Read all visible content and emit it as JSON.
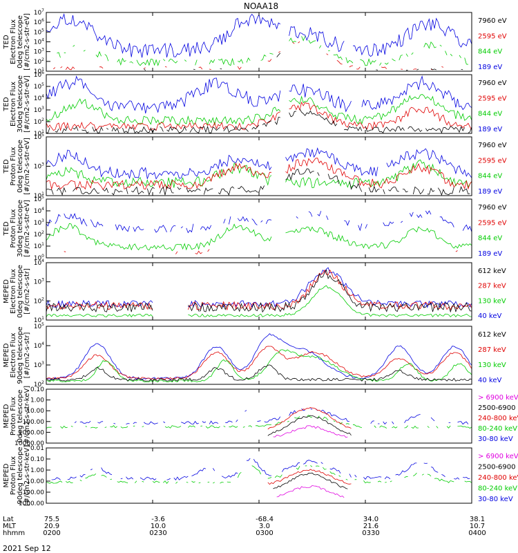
{
  "title": "NOAA18",
  "date": "2021 Sep 12",
  "colors": {
    "black": "#000000",
    "red": "#e00000",
    "green": "#00cc00",
    "blue": "#0000e0",
    "magenta": "#e000e0"
  },
  "xaxis": {
    "row_labels": [
      "Lat",
      "MLT",
      "hhmm"
    ],
    "ticks": [
      {
        "lat": "75.5",
        "mlt": "20.9",
        "hhmm": "0200"
      },
      {
        "lat": "-3.6",
        "mlt": "10.0",
        "hhmm": "0230"
      },
      {
        "lat": "-68.4",
        "mlt": "3.0",
        "hhmm": "0300"
      },
      {
        "lat": "34.0",
        "mlt": "21.6",
        "hhmm": "0330"
      },
      {
        "lat": "38.1",
        "mlt": "10.7",
        "hhmm": "0400"
      }
    ]
  },
  "chart_data": [
    {
      "type": "line",
      "ylabel": [
        "TED",
        "Electron Flux",
        "0deg telescope",
        "[#/cm2-s-str-eV]"
      ],
      "ytick_labels": [
        "10^1",
        "10^2",
        "10^3",
        "10^4",
        "10^5",
        "10^6",
        "10^7"
      ],
      "legend": [
        {
          "label": "7960 eV",
          "color": "black"
        },
        {
          "label": "2595 eV",
          "color": "red"
        },
        {
          "label": "844 eV",
          "color": "green"
        },
        {
          "label": "189 eV",
          "color": "blue"
        }
      ]
    },
    {
      "type": "line",
      "ylabel": [
        "TED",
        "Electron Flux",
        "30deg telescope",
        "[#/cm2-s-str-eV]"
      ],
      "ytick_labels": [
        "10^1",
        "10^2",
        "10^3",
        "10^4",
        "10^5",
        "10^6"
      ],
      "legend": [
        {
          "label": "7960 eV",
          "color": "black"
        },
        {
          "label": "2595 eV",
          "color": "red"
        },
        {
          "label": "844 eV",
          "color": "green"
        },
        {
          "label": "189 eV",
          "color": "blue"
        }
      ]
    },
    {
      "type": "line",
      "ylabel": [
        "TED",
        "Proton Flux",
        "0deg telescope",
        "[#/cm2-s-str-eV]"
      ],
      "ytick_labels": [
        "10^1",
        "10^3",
        "10^5"
      ],
      "legend": [
        {
          "label": "7960 eV",
          "color": "black"
        },
        {
          "label": "2595 eV",
          "color": "red"
        },
        {
          "label": "844 eV",
          "color": "green"
        },
        {
          "label": "189 eV",
          "color": "blue"
        }
      ]
    },
    {
      "type": "line",
      "ylabel": [
        "TED",
        "Proton Flux",
        "30deg telescope",
        "[#/cm2-s-str-eV]"
      ],
      "ytick_labels": [
        "10^0",
        "10^1",
        "10^2",
        "10^3",
        "10^4",
        "10^5"
      ],
      "legend": [
        {
          "label": "7960 eV",
          "color": "black"
        },
        {
          "label": "2595 eV",
          "color": "red"
        },
        {
          "label": "844 eV",
          "color": "green"
        },
        {
          "label": "189 eV",
          "color": "blue"
        }
      ]
    },
    {
      "type": "line",
      "ylabel": [
        "MEPED",
        "Electron Flux",
        "0deg telescope",
        "[#/cm2-s-str]"
      ],
      "ytick_labels": [
        "10^1",
        "10^2",
        "10^3",
        "10^4"
      ],
      "legend": [
        {
          "label": "612 keV",
          "color": "black"
        },
        {
          "label": "287 keV",
          "color": "red"
        },
        {
          "label": "130 keV",
          "color": "green"
        },
        {
          "label": "40 keV",
          "color": "blue"
        }
      ]
    },
    {
      "type": "line",
      "ylabel": [
        "MEPED",
        "Electron Flux",
        "90deg telescope",
        "[#/cm2-s-str]"
      ],
      "ytick_labels": [
        "10^2",
        "10^3",
        "10^4",
        "10^5"
      ],
      "legend": [
        {
          "label": "612 keV",
          "color": "black"
        },
        {
          "label": "287 keV",
          "color": "red"
        },
        {
          "label": "130 keV",
          "color": "green"
        },
        {
          "label": "40 keV",
          "color": "blue"
        }
      ]
    },
    {
      "type": "line",
      "ylabel": [
        "MEPED",
        "Proton Flux",
        "0deg telescope",
        "[#/cm2-s-str-keV]"
      ],
      "ytick_labels": [
        "10000.00",
        "1000.00",
        "100.00",
        "10.00",
        "1.00",
        "0.10"
      ],
      "legend": [
        {
          "label": "> 6900 keV",
          "color": "magenta"
        },
        {
          "label": "2500-6900",
          "color": "black"
        },
        {
          "label": "240-800 keV",
          "color": "red"
        },
        {
          "label": "80-240 keV",
          "color": "green"
        },
        {
          "label": "30-80 keV",
          "color": "blue"
        }
      ]
    },
    {
      "type": "line",
      "ylabel": [
        "MEPED",
        "Proton Flux",
        "90deg telescope",
        "[#/cm2-s-str-keV]"
      ],
      "ytick_labels": [
        "1000.00",
        "100.00",
        "10.00",
        "1.00",
        "0.10",
        "0.01"
      ],
      "legend": [
        {
          "label": "> 6900 keV",
          "color": "magenta"
        },
        {
          "label": "2500-6900",
          "color": "black"
        },
        {
          "label": "240-800 keV",
          "color": "red"
        },
        {
          "label": "80-240 keV",
          "color": "green"
        },
        {
          "label": "30-80 keV",
          "color": "blue"
        }
      ]
    }
  ]
}
